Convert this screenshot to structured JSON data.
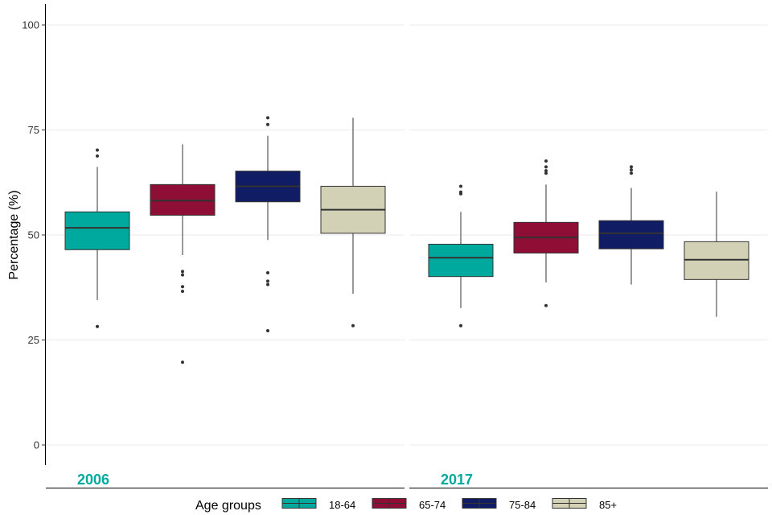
{
  "chart_data": {
    "type": "boxplot",
    "title": "",
    "xlabel": "",
    "ylabel": "Percentage (%)",
    "ylim": [
      -5,
      105
    ],
    "yticks": [
      0,
      25,
      50,
      75,
      100
    ],
    "grid": "horizontal",
    "panels": [
      {
        "label": "2006",
        "groups": [
          {
            "name": "18-64",
            "min": 34.5,
            "q1": 46.5,
            "median": 51.7,
            "q3": 55.5,
            "max": 66.2,
            "outliers": [
              28.2,
              68.8,
              70.2
            ]
          },
          {
            "name": "65-74",
            "min": 45.2,
            "q1": 54.7,
            "median": 58.2,
            "q3": 62.0,
            "max": 71.6,
            "outliers": [
              19.7,
              36.6,
              37.7,
              40.5,
              41.3
            ]
          },
          {
            "name": "75-84",
            "min": 48.8,
            "q1": 57.9,
            "median": 61.6,
            "q3": 65.2,
            "max": 73.6,
            "outliers": [
              27.2,
              38.2,
              39.0,
              41.0,
              76.3,
              77.9
            ]
          },
          {
            "name": "85+",
            "min": 36.0,
            "q1": 50.4,
            "median": 56.0,
            "q3": 61.6,
            "max": 77.9,
            "outliers": [
              28.4
            ]
          }
        ]
      },
      {
        "label": "2017",
        "groups": [
          {
            "name": "18-64",
            "min": 32.6,
            "q1": 40.1,
            "median": 44.6,
            "q3": 47.8,
            "max": 55.5,
            "outliers": [
              28.4,
              59.8,
              60.2,
              61.6
            ]
          },
          {
            "name": "65-74",
            "min": 38.7,
            "q1": 45.7,
            "median": 49.4,
            "q3": 53.0,
            "max": 62.0,
            "outliers": [
              33.2,
              64.7,
              65.3,
              66.2,
              67.6
            ]
          },
          {
            "name": "75-84",
            "min": 38.2,
            "q1": 46.7,
            "median": 50.4,
            "q3": 53.4,
            "max": 61.2,
            "outliers": [
              64.7,
              65.5,
              66.2
            ]
          },
          {
            "name": "85+",
            "min": 30.5,
            "q1": 39.4,
            "median": 44.1,
            "q3": 48.4,
            "max": 60.3,
            "outliers": []
          }
        ]
      }
    ],
    "legend": {
      "title": "Age groups",
      "position": "bottom",
      "entries": [
        "18-64",
        "65-74",
        "75-84",
        "85+"
      ]
    }
  },
  "colors": {
    "18-64": "#00a99d",
    "65-74": "#8f0e36",
    "75-84": "#101c63",
    "85+": "#d2d1b6",
    "panel_label": "#00a99d",
    "grid": "#ebebeb",
    "box_stroke": "#333333"
  }
}
